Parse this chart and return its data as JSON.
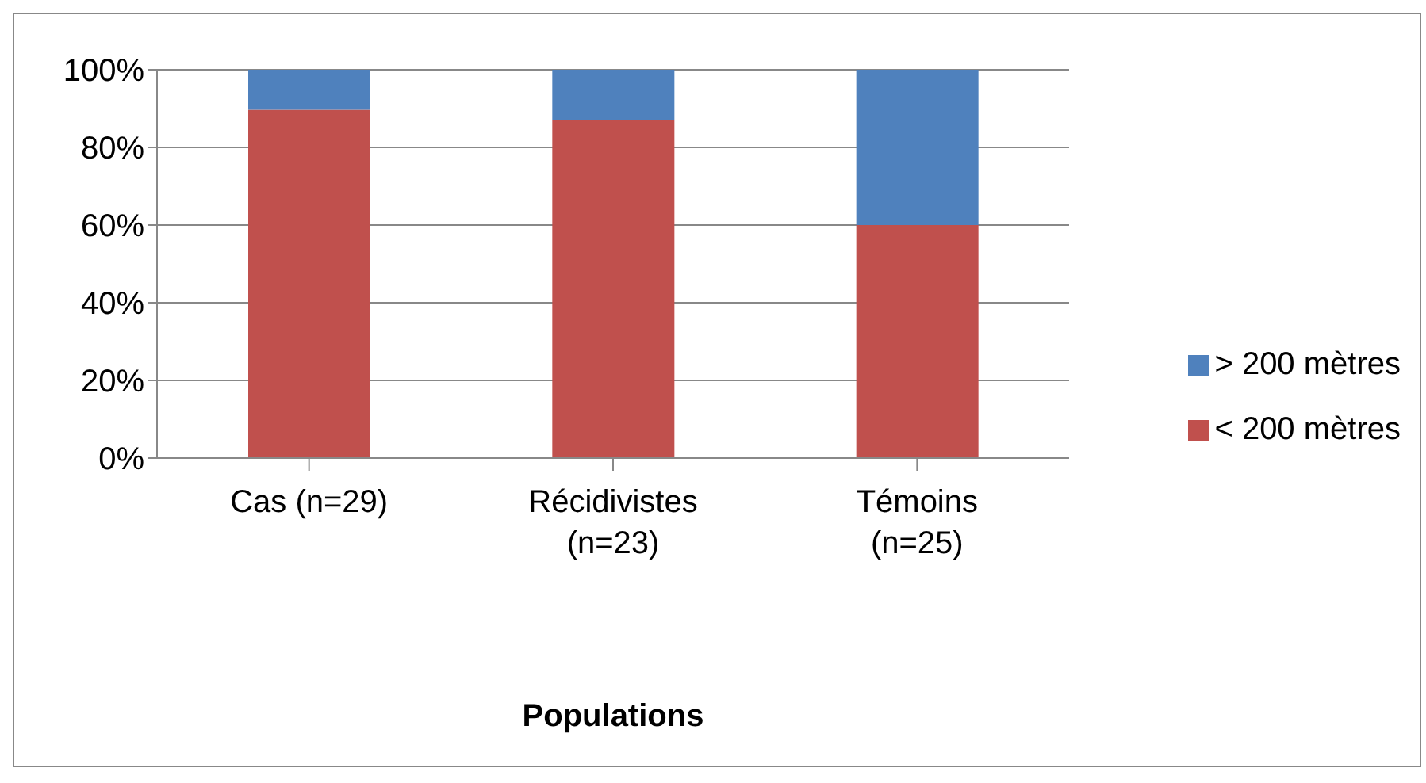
{
  "chart_data": {
    "type": "bar",
    "stacked": true,
    "xlabel": "Populations",
    "categories": [
      "Cas (n=29)",
      "Récidivistes (n=23)",
      "Témoins (n=25)"
    ],
    "series": [
      {
        "name": "< 200 mètres",
        "color": "#c0504d",
        "values": [
          89.7,
          87.0,
          60.0
        ]
      },
      {
        "name": "> 200 mètres",
        "color": "#4f81bd",
        "values": [
          10.3,
          13.0,
          40.0
        ]
      }
    ],
    "ylim": [
      0,
      100
    ],
    "yticks": [
      {
        "value": 0,
        "label": "0%"
      },
      {
        "value": 20,
        "label": "20%"
      },
      {
        "value": 40,
        "label": "40%"
      },
      {
        "value": 60,
        "label": "60%"
      },
      {
        "value": 80,
        "label": "80%"
      },
      {
        "value": 100,
        "label": "100%"
      }
    ],
    "grid": "y",
    "legend": "right"
  }
}
